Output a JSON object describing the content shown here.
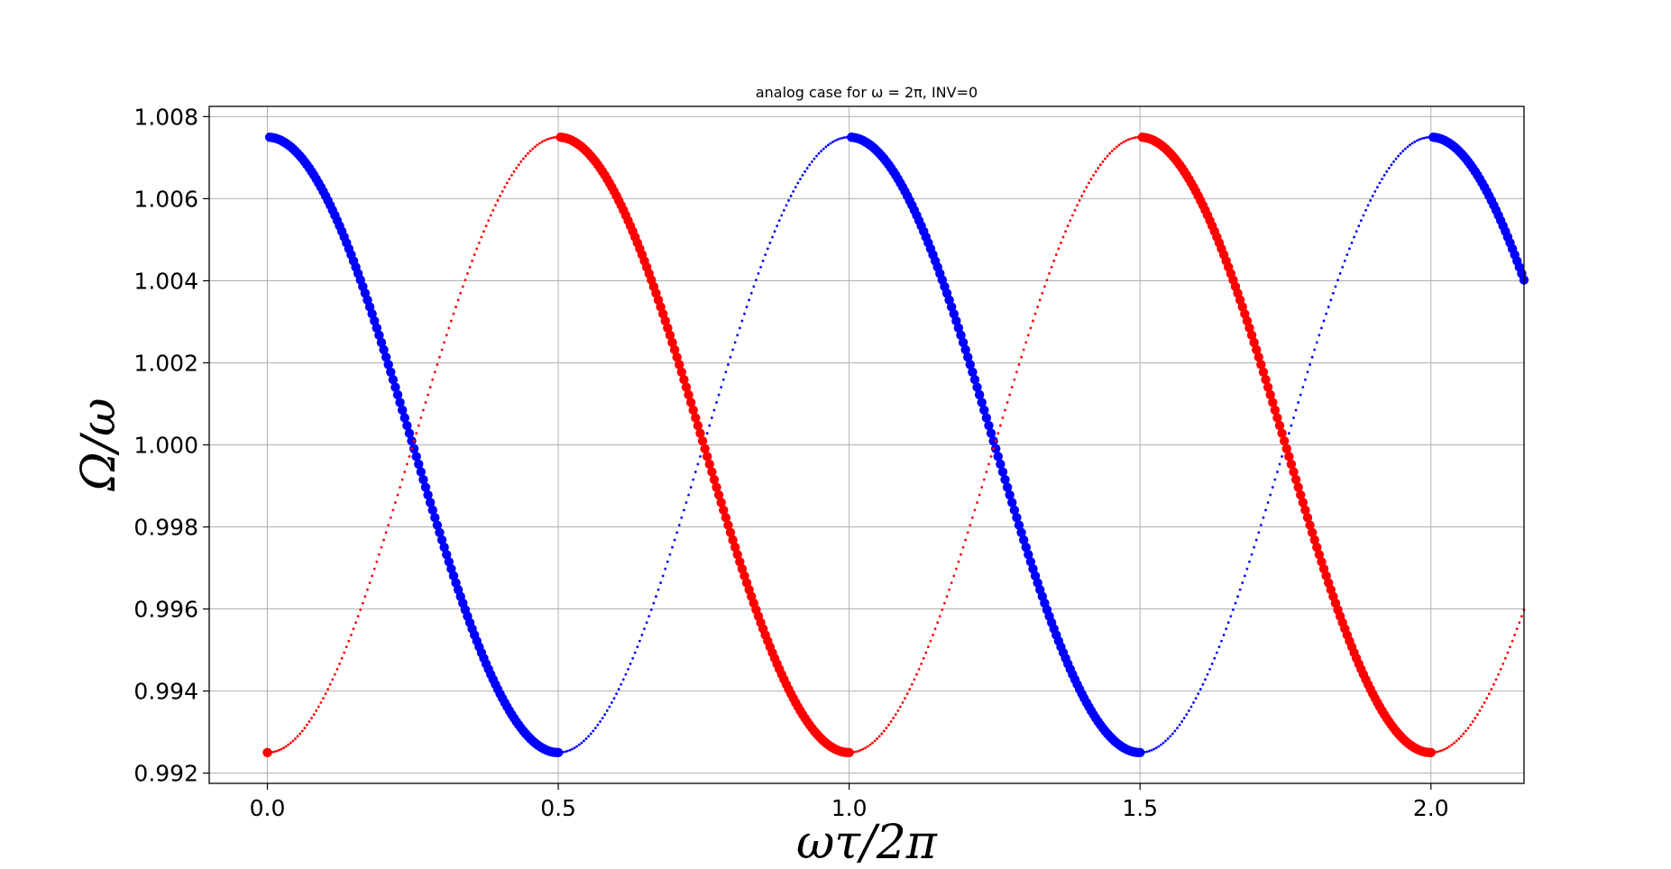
{
  "chart_data": {
    "type": "scatter",
    "title": "analog case for ω = 2π, INV=0",
    "xlabel": "ωτ/2π",
    "ylabel": "Ω/ω",
    "xlim": [
      -0.1,
      2.16
    ],
    "ylim": [
      0.99175,
      1.00825
    ],
    "xticks": [
      "0.0",
      "0.5",
      "1.0",
      "1.5",
      "2.0"
    ],
    "xtick_values": [
      0.0,
      0.5,
      1.0,
      1.5,
      2.0
    ],
    "yticks": [
      "0.992",
      "0.994",
      "0.996",
      "0.998",
      "1.000",
      "1.002",
      "1.004",
      "1.006",
      "1.008"
    ],
    "ytick_values": [
      0.992,
      0.994,
      0.996,
      0.998,
      1.0,
      1.002,
      1.004,
      1.006,
      1.008
    ],
    "grid": true,
    "curve": {
      "center": 1.0,
      "amplitude": 0.0075,
      "period": 1.0,
      "x_start": 0.0,
      "x_end": 2.16,
      "samples": 540
    },
    "series": [
      {
        "color": "#0000ff",
        "phase": "cos",
        "stable_marker_size": 5.2,
        "unstable_marker_size": 1.4
      },
      {
        "color": "#ff0000",
        "phase": "-cos",
        "stable_marker_size": 5.2,
        "unstable_marker_size": 1.4
      }
    ]
  }
}
